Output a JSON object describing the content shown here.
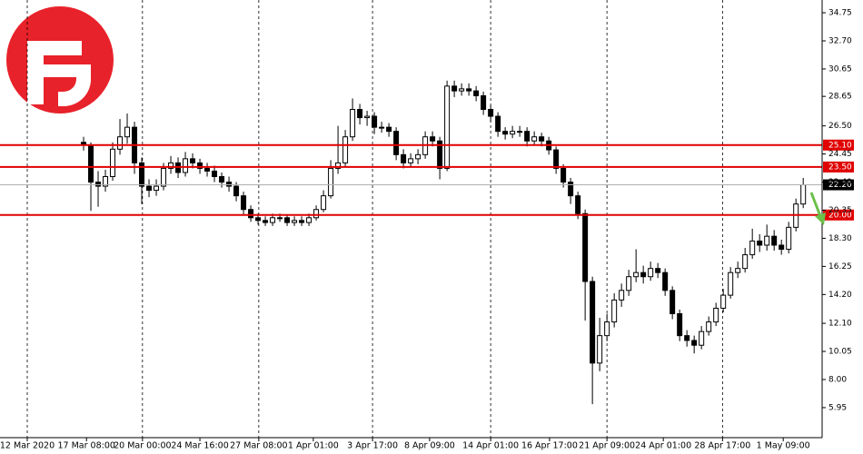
{
  "chart_data": {
    "type": "candlestick",
    "ohlc": {
      "open": [
        25.3,
        25.08,
        22.4,
        22.1,
        22.8,
        24.8,
        25.7,
        26.4,
        23.8,
        22.1,
        21.8,
        22.1,
        23.4,
        23.8,
        23.1,
        24.1,
        23.8,
        23.4,
        23.2,
        22.8,
        22.4,
        22.1,
        21.4,
        20.4,
        19.8,
        19.6,
        19.45,
        19.8,
        19.8,
        19.45,
        19.6,
        19.45,
        19.8,
        20.4,
        21.4,
        23.4,
        23.8,
        25.7,
        27.7,
        27.1,
        27.2,
        26.4,
        26.4,
        26.1,
        24.4,
        23.8,
        24.1,
        24.4,
        25.7,
        25.4,
        23.4,
        29.4,
        29.05,
        29.2,
        29.05,
        28.7,
        27.7,
        27.2,
        26.1,
        25.9,
        26.1,
        26.1,
        25.4,
        25.7,
        25.4,
        24.75,
        23.4,
        22.4,
        21.4,
        20.1,
        15.15,
        9.2,
        11.2,
        12.2,
        13.8,
        14.5,
        15.5,
        15.8,
        15.5,
        16.1,
        15.8,
        14.5,
        12.8,
        11.2,
        10.85,
        10.5,
        11.5,
        12.2,
        13.2,
        14.15,
        15.8,
        16.1,
        17.1,
        18.1,
        17.8,
        18.45,
        17.8,
        17.5,
        19.1,
        20.8
      ],
      "high": [
        25.7,
        25.3,
        23.2,
        23.3,
        25.3,
        27.0,
        27.4,
        26.8,
        24.2,
        22.6,
        22.6,
        23.8,
        24.3,
        24.2,
        24.6,
        24.5,
        24.1,
        23.8,
        23.6,
        23.1,
        22.8,
        22.4,
        21.7,
        20.7,
        20.1,
        19.9,
        20.1,
        20.1,
        20.0,
        19.9,
        19.9,
        20.1,
        20.7,
        21.8,
        24.0,
        26.5,
        26.2,
        28.5,
        28.1,
        27.6,
        27.5,
        26.8,
        26.7,
        26.4,
        24.8,
        24.5,
        24.8,
        26.1,
        26.1,
        25.7,
        29.8,
        29.8,
        29.6,
        29.6,
        29.4,
        29.0,
        28.0,
        27.5,
        26.4,
        26.5,
        26.5,
        26.4,
        26.1,
        26.0,
        25.7,
        25.0,
        23.7,
        22.7,
        21.7,
        20.4,
        15.5,
        12.5,
        12.8,
        14.3,
        15.0,
        16.0,
        17.5,
        16.3,
        16.6,
        16.5,
        16.1,
        14.8,
        13.1,
        11.6,
        11.2,
        11.9,
        12.6,
        13.6,
        14.6,
        16.2,
        16.6,
        17.6,
        19.0,
        18.6,
        19.3,
        18.9,
        18.2,
        19.5,
        21.2,
        22.7
      ],
      "low": [
        24.7,
        20.3,
        20.6,
        21.7,
        22.5,
        24.4,
        25.2,
        23.0,
        20.8,
        21.3,
        21.4,
        21.8,
        23.0,
        22.7,
        22.8,
        23.4,
        23.0,
        22.8,
        22.4,
        22.0,
        21.7,
        21.0,
        20.0,
        19.5,
        19.3,
        19.2,
        19.2,
        19.5,
        19.2,
        19.2,
        19.2,
        19.2,
        19.6,
        20.2,
        21.2,
        23.0,
        23.5,
        25.4,
        26.6,
        26.5,
        25.9,
        26.0,
        25.7,
        24.0,
        23.4,
        23.5,
        23.7,
        24.1,
        25.0,
        22.6,
        23.2,
        28.6,
        28.7,
        28.7,
        28.3,
        27.3,
        26.8,
        25.7,
        25.5,
        25.6,
        25.7,
        25.0,
        25.1,
        25.0,
        24.4,
        23.0,
        22.0,
        20.8,
        19.7,
        12.3,
        6.2,
        8.6,
        10.8,
        11.8,
        13.3,
        14.1,
        15.1,
        15.0,
        15.2,
        15.4,
        14.1,
        12.4,
        10.8,
        10.4,
        9.9,
        10.2,
        11.2,
        11.9,
        12.9,
        13.9,
        15.4,
        15.8,
        16.8,
        17.3,
        17.4,
        17.4,
        17.1,
        17.2,
        18.8,
        20.5
      ],
      "close": [
        25.08,
        22.4,
        22.1,
        22.8,
        24.8,
        25.7,
        26.4,
        23.8,
        22.1,
        21.8,
        22.1,
        23.4,
        23.8,
        23.1,
        24.1,
        23.8,
        23.4,
        23.2,
        22.8,
        22.4,
        22.1,
        21.4,
        20.4,
        19.8,
        19.6,
        19.45,
        19.8,
        19.8,
        19.45,
        19.6,
        19.45,
        19.8,
        20.4,
        21.4,
        23.4,
        23.8,
        25.7,
        27.7,
        27.1,
        27.2,
        26.4,
        26.4,
        26.1,
        24.4,
        23.8,
        24.1,
        24.4,
        25.7,
        25.4,
        23.4,
        29.4,
        29.05,
        29.2,
        29.05,
        28.7,
        27.7,
        27.2,
        26.1,
        25.9,
        26.1,
        26.1,
        25.4,
        25.7,
        25.4,
        24.75,
        23.4,
        22.4,
        21.4,
        20.1,
        15.15,
        9.2,
        11.2,
        12.2,
        13.8,
        14.5,
        15.5,
        15.8,
        15.5,
        16.1,
        15.8,
        14.5,
        12.8,
        11.2,
        10.85,
        10.5,
        11.5,
        12.2,
        13.2,
        14.15,
        15.8,
        16.1,
        17.1,
        18.1,
        17.8,
        18.45,
        17.8,
        17.5,
        19.1,
        20.8,
        22.2
      ]
    },
    "up_color": "#ffffff",
    "down_color": "#000000",
    "xlim": [
      -11.5,
      101.6
    ],
    "xticks": [
      {
        "value": -7.75,
        "label": "12 Mar 2020"
      },
      {
        "value": 0.4,
        "label": "17 Mar 08:00"
      },
      {
        "value": 8.1,
        "label": "20 Mar 00:00"
      },
      {
        "value": 16,
        "label": "24 Mar 16:00"
      },
      {
        "value": 24.1,
        "label": "27 Mar 08:00"
      },
      {
        "value": 31.6,
        "label": "1 Apr 01:00"
      },
      {
        "value": 39.75,
        "label": "3 Apr 17:00"
      },
      {
        "value": 47.6,
        "label": "8 Apr 09:00"
      },
      {
        "value": 56,
        "label": "14 Apr 01:00"
      },
      {
        "value": 64.1,
        "label": "16 Apr 17:00"
      },
      {
        "value": 72,
        "label": "21 Apr 09:00"
      },
      {
        "value": 79.75,
        "label": "24 Apr 01:00"
      },
      {
        "value": 87.9,
        "label": "28 Apr 17:00"
      },
      {
        "value": 96.25,
        "label": "1 May 09:00"
      }
    ],
    "ylim": [
      3.76,
      35.68
    ],
    "yticks": [
      34.75,
      {
        "value": 32.7,
        "label": "32.70"
      },
      30.65,
      28.65,
      {
        "value": 26.5,
        "label": "26.50"
      },
      24.45,
      {
        "value": 22.4,
        "label": "22.40"
      },
      20.35,
      {
        "value": 18.3,
        "label": "18.30"
      },
      16.25,
      {
        "value": 14.2,
        "label": "14.20"
      },
      {
        "value": 12.1,
        "label": "12.10"
      },
      10.05,
      {
        "value": 8,
        "label": "8.00"
      },
      5.95
    ],
    "grid": true,
    "levels": [
      {
        "value": 25.1,
        "label": "25.10",
        "color": "#e00000"
      },
      {
        "value": 23.5,
        "label": "23.50",
        "color": "#e00000"
      },
      {
        "value": 20,
        "label": "20.00",
        "color": "#e00000"
      }
    ],
    "last_price": {
      "value": 22.2,
      "label": "22.20",
      "color": "#000000"
    }
  }
}
